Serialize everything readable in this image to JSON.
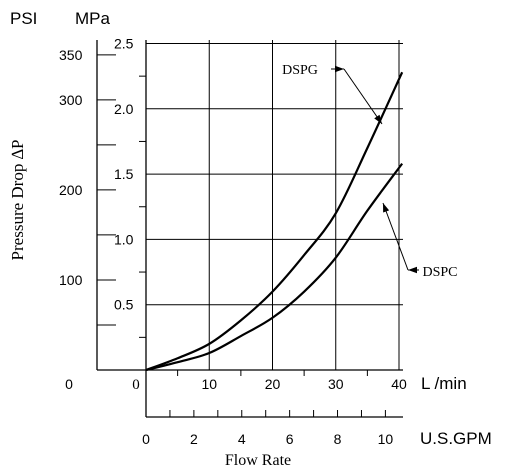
{
  "chart_data": {
    "type": "line",
    "xlabel": "Flow Rate",
    "ylabel": "Pressure Drop ∆P",
    "x_unit_primary": "L /min",
    "x_unit_secondary": "U.S.GPM",
    "y_unit_primary": "MPa",
    "y_unit_secondary": "PSI",
    "xlim": [
      0,
      40.5
    ],
    "ylim": [
      0,
      2.55
    ],
    "x_ticks": [
      "0",
      "10",
      "20",
      "30",
      "40"
    ],
    "y_ticks": [
      "0.5",
      "1.0",
      "1.5",
      "2.0",
      "2.5"
    ],
    "gpm_ticks": [
      "0",
      "2",
      "4",
      "6",
      "8",
      "10"
    ],
    "psi_ticks": [
      "0",
      "100",
      "200",
      "300",
      "350"
    ],
    "grid": true,
    "series": [
      {
        "name": "DSPG",
        "x": [
          0,
          5,
          10,
          15,
          20,
          25,
          30,
          35,
          40.5
        ],
        "y": [
          0,
          0.09,
          0.2,
          0.38,
          0.6,
          0.88,
          1.2,
          1.7,
          2.28
        ]
      },
      {
        "name": "DSPC",
        "x": [
          0,
          5,
          10,
          15,
          20,
          25,
          30,
          35,
          40.5
        ],
        "y": [
          0,
          0.06,
          0.13,
          0.26,
          0.4,
          0.6,
          0.86,
          1.22,
          1.58
        ]
      }
    ]
  }
}
